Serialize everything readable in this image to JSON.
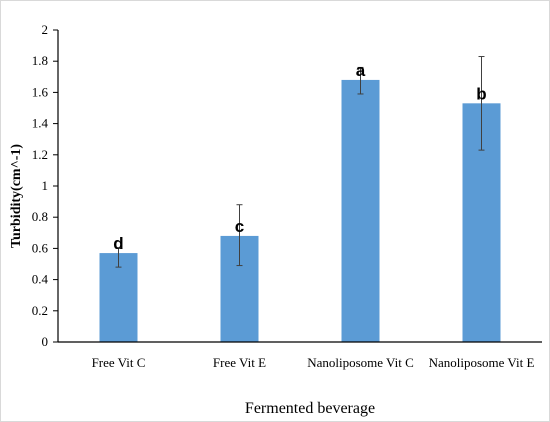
{
  "chart_data": {
    "type": "bar",
    "categories": [
      "Free Vit C",
      "Free Vit E",
      "Nanoliposome Vit C",
      "Nanoliposome Vit E"
    ],
    "values": [
      0.57,
      0.68,
      1.68,
      1.53
    ],
    "error_low": [
      0.48,
      0.49,
      1.59,
      1.23
    ],
    "error_high": [
      0.6,
      0.88,
      1.76,
      1.83
    ],
    "data_labels": [
      "d",
      "c",
      "a",
      "b"
    ],
    "xlabel": "Fermented beverage",
    "ylabel": "Turbidity(cm^-1)",
    "ylim": [
      0,
      2
    ],
    "yticks": [
      "0",
      "0.2",
      "0.4",
      "0.6",
      "0.8",
      "1",
      "1.2",
      "1.4",
      "1.6",
      "1.8",
      "2"
    ],
    "grid": false,
    "legend": "none",
    "bar_color": "#5b9bd5"
  }
}
